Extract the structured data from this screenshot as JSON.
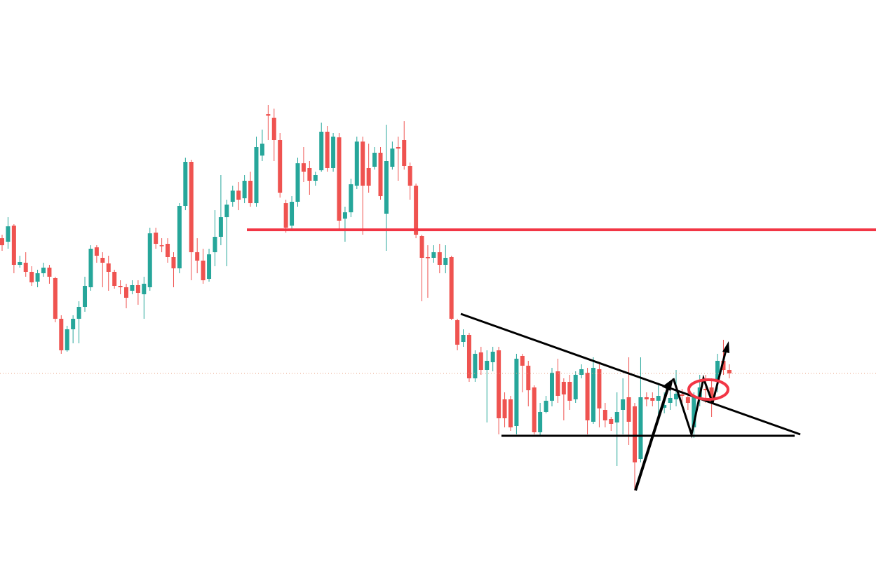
{
  "chart_data": {
    "type": "candlestick",
    "up_color": "#26a69a",
    "down_color": "#ef5350",
    "ylim": [
      0,
      81.5
    ],
    "open": [
      47.5,
      47.0,
      49.3,
      43.7,
      44.0,
      42.7,
      41.3,
      42.5,
      43.3,
      41.8,
      36.0,
      31.5,
      34.5,
      36.0,
      37.7,
      40.5,
      46.2,
      44.7,
      43.9,
      42.7,
      40.7,
      40.5,
      40.0,
      40.8,
      39.5,
      40.5,
      48.3,
      46.5,
      46.7,
      44.8,
      43.2,
      52.1,
      58.4,
      45.5,
      44.3,
      41.7,
      45.5,
      47.7,
      50.5,
      52.7,
      54.3,
      53.2,
      55.7,
      52.5,
      59.3,
      65.2,
      64.7,
      61.5,
      52.5,
      49.3,
      52.7,
      58.2,
      57.5,
      55.7,
      57.2,
      62.7,
      57.5,
      61.9,
      50.3,
      51.2,
      55.0,
      61.3,
      57.5,
      57.7,
      59.7,
      51.0,
      57.7,
      60.5,
      61.5,
      57.8,
      55.0,
      47.8,
      44.8,
      44.7,
      45.5,
      43.7,
      44.8,
      35.8,
      32.7,
      33.7,
      27.5,
      31.2,
      28.7,
      29.8,
      31.5,
      24.5,
      24.5,
      20.7,
      30.7,
      29.3,
      26.2,
      19.8,
      22.7,
      24.3,
      28.5,
      27.0,
      27.0,
      24.5,
      28.0,
      28.3,
      21.3,
      28.8,
      23.0,
      21.7,
      21.2,
      23.0,
      24.8,
      23.5,
      16.0,
      24.8,
      24.7,
      24.3,
      23.3,
      24.0,
      24.5,
      25.2,
      24.8,
      20.5,
      24.8,
      26.0,
      26.2,
      27.0,
      30.0,
      28.7
    ],
    "high": [
      48.0,
      50.5,
      49.5,
      45.0,
      45.5,
      43.5,
      43.0,
      44.0,
      43.7,
      42.0,
      36.5,
      35.0,
      36.5,
      38.5,
      42.0,
      46.5,
      46.5,
      45.5,
      45.0,
      43.0,
      41.5,
      41.0,
      41.5,
      41.5,
      42.0,
      49.0,
      49.0,
      47.5,
      47.5,
      45.5,
      52.5,
      59.0,
      58.7,
      47.5,
      46.0,
      46.0,
      51.5,
      56.5,
      53.0,
      55.0,
      55.5,
      56.5,
      57.0,
      62.0,
      63.0,
      66.5,
      66.0,
      62.5,
      53.0,
      53.5,
      59.0,
      60.5,
      58.5,
      57.0,
      64.0,
      63.5,
      62.5,
      62.5,
      52.0,
      56.0,
      62.0,
      62.0,
      61.0,
      60.5,
      60.5,
      63.7,
      61.3,
      62.0,
      64.2,
      58.3,
      55.3,
      48.0,
      46.5,
      46.5,
      46.7,
      46.5,
      45.0,
      36.0,
      34.5,
      34.0,
      31.5,
      32.0,
      31.5,
      32.0,
      32.0,
      25.5,
      25.0,
      31.0,
      31.0,
      30.0,
      26.5,
      24.0,
      25.0,
      29.0,
      30.3,
      27.5,
      28.0,
      28.5,
      29.5,
      29.0,
      30.5,
      29.5,
      24.0,
      22.0,
      25.5,
      27.5,
      30.5,
      24.0,
      30.5,
      25.5,
      25.5,
      26.5,
      25.5,
      26.0,
      28.7,
      26.0,
      25.5,
      25.5,
      28.0,
      28.0,
      27.5,
      31.0,
      33.0,
      29.5
    ],
    "low": [
      45.7,
      46.0,
      42.5,
      43.3,
      42.0,
      40.7,
      40.5,
      42.0,
      41.0,
      35.5,
      31.0,
      31.3,
      32.5,
      32.5,
      37.0,
      40.0,
      44.0,
      40.5,
      40.0,
      40.3,
      39.5,
      37.5,
      39.5,
      38.0,
      36.0,
      40.0,
      46.0,
      45.5,
      44.0,
      40.5,
      42.5,
      51.5,
      41.5,
      42.5,
      41.0,
      41.3,
      43.5,
      46.5,
      43.5,
      52.0,
      51.5,
      52.5,
      52.0,
      52.0,
      58.5,
      61.5,
      58.5,
      53.3,
      48.3,
      48.5,
      52.0,
      55.5,
      53.7,
      55.0,
      57.0,
      57.0,
      57.0,
      48.5,
      47.0,
      50.5,
      54.5,
      48.0,
      54.0,
      57.3,
      53.0,
      45.7,
      57.3,
      55.7,
      57.3,
      53.0,
      47.5,
      38.5,
      39.0,
      44.0,
      42.5,
      42.5,
      35.8,
      31.5,
      32.0,
      27.0,
      27.0,
      28.0,
      21.2,
      28.5,
      19.5,
      20.5,
      20.0,
      19.5,
      25.5,
      23.5,
      19.5,
      19.3,
      22.5,
      23.5,
      24.0,
      21.5,
      23.0,
      24.0,
      27.5,
      19.5,
      21.0,
      20.5,
      20.5,
      20.0,
      15.0,
      19.5,
      18.0,
      11.5,
      15.5,
      23.5,
      23.5,
      22.0,
      22.5,
      23.0,
      23.5,
      23.5,
      23.0,
      19.0,
      23.5,
      24.0,
      22.0,
      25.5,
      28.0,
      27.5
    ],
    "close": [
      46.5,
      49.2,
      43.7,
      44.1,
      42.7,
      41.2,
      42.5,
      43.3,
      42.0,
      36.0,
      31.5,
      34.5,
      36.0,
      37.7,
      40.7,
      46.0,
      45.0,
      44.0,
      42.7,
      40.7,
      40.5,
      39.0,
      40.8,
      39.7,
      41.0,
      48.2,
      46.7,
      46.4,
      44.8,
      43.2,
      52.1,
      58.4,
      45.5,
      44.3,
      41.5,
      45.2,
      47.7,
      50.5,
      52.3,
      54.3,
      53.0,
      55.7,
      52.5,
      60.5,
      61.0,
      65.0,
      61.5,
      54.0,
      49.0,
      52.7,
      58.2,
      57.0,
      55.7,
      56.5,
      62.7,
      57.5,
      62.0,
      50.0,
      51.2,
      55.2,
      61.3,
      55.0,
      55.0,
      59.7,
      53.5,
      58.5,
      60.3,
      60.3,
      57.8,
      55.0,
      48.0,
      44.7,
      44.7,
      45.5,
      43.7,
      44.7,
      36.0,
      32.3,
      33.7,
      27.5,
      31.0,
      28.7,
      30.0,
      31.3,
      21.8,
      21.8,
      20.5,
      30.3,
      29.3,
      25.8,
      19.8,
      22.7,
      24.3,
      28.3,
      25.0,
      25.2,
      24.3,
      28.0,
      28.8,
      21.5,
      29.0,
      23.2,
      21.5,
      21.0,
      22.7,
      24.5,
      21.3,
      15.5,
      24.8,
      24.5,
      24.3,
      25.0,
      23.7,
      24.7,
      25.3,
      25.0,
      24.0,
      25.0,
      26.2,
      25.8,
      24.0,
      30.0,
      28.7,
      28.2
    ]
  }
}
